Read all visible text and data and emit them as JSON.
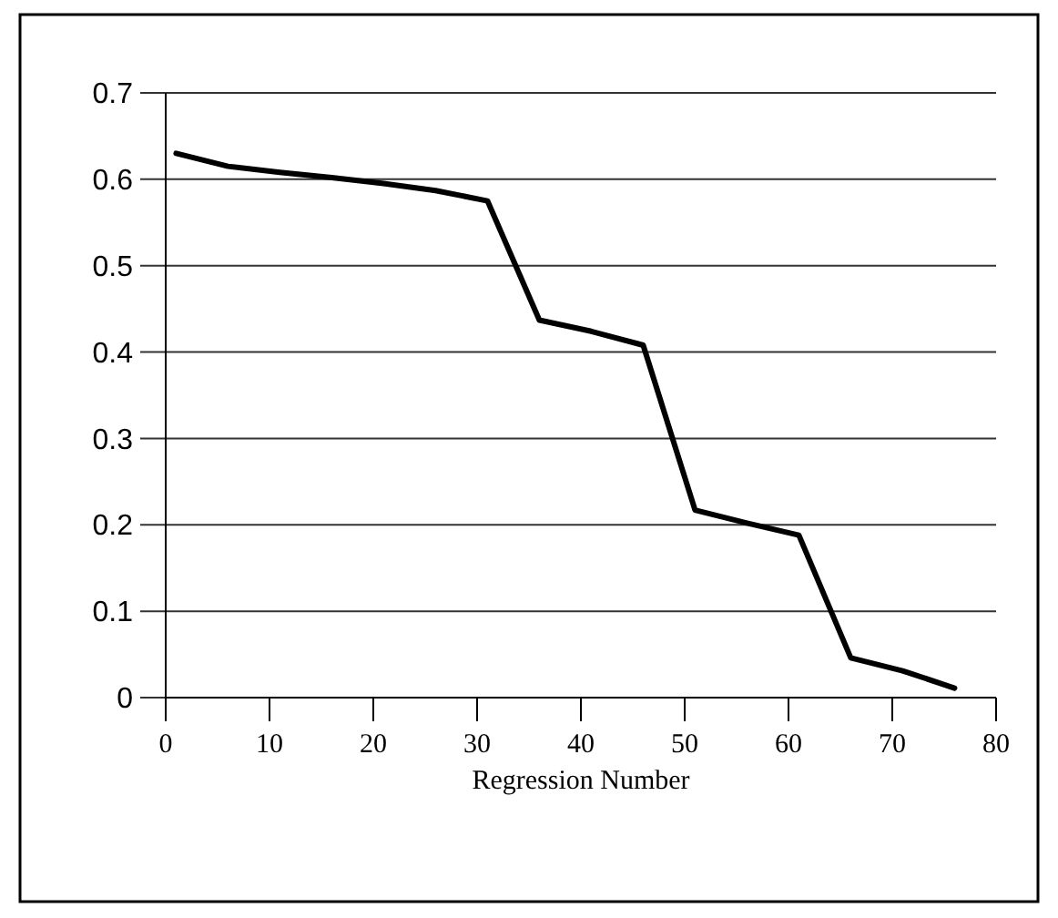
{
  "chart_data": {
    "type": "line",
    "xlabel": "Regression Number",
    "x": [
      1,
      6,
      11,
      16,
      21,
      26,
      31,
      36,
      41,
      46,
      51,
      56,
      61,
      66,
      71,
      76
    ],
    "series": [
      {
        "color": "#000000",
        "values": [
          0.63,
          0.615,
          0.608,
          0.602,
          0.595,
          0.587,
          0.575,
          0.437,
          0.424,
          0.408,
          0.217,
          0.202,
          0.188,
          0.046,
          0.031,
          0.011
        ]
      }
    ],
    "xlim": [
      0,
      80
    ],
    "xticks": [
      0,
      10,
      20,
      30,
      40,
      50,
      60,
      70,
      80
    ],
    "ylim": [
      0,
      0.7
    ],
    "yticks": [
      0,
      0.1,
      0.2,
      0.3,
      0.4,
      0.5,
      0.6,
      0.7
    ],
    "grid": "y",
    "marker": "none",
    "line_style": "solid"
  }
}
